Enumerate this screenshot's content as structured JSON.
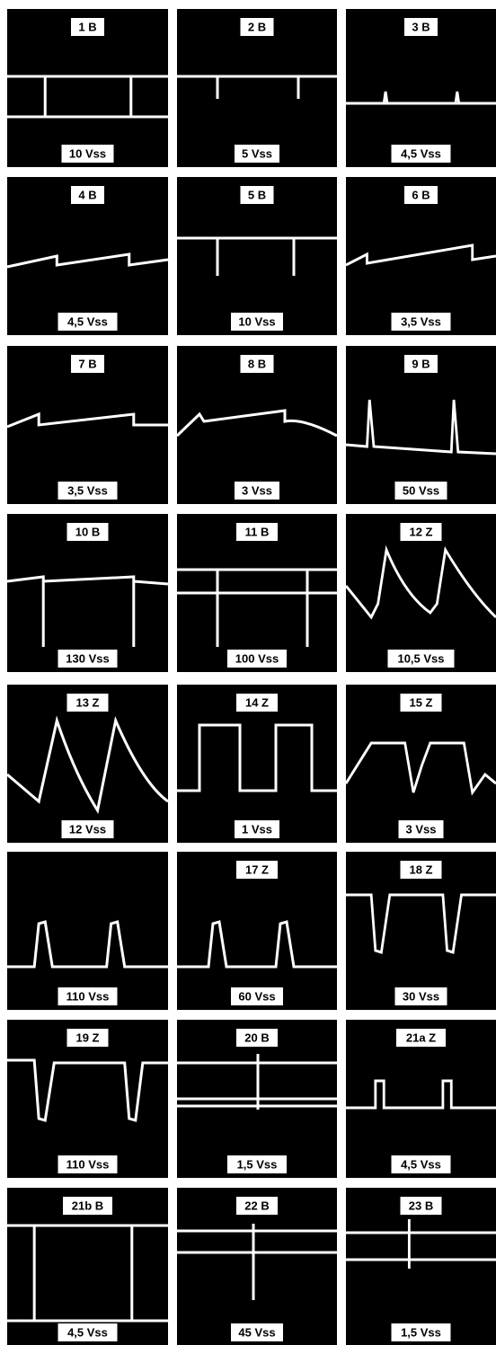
{
  "panels": [
    {
      "label": "1 B",
      "voltage": "10 Vss"
    },
    {
      "label": "2 B",
      "voltage": "5 Vss"
    },
    {
      "label": "3 B",
      "voltage": "4,5 Vss"
    },
    {
      "label": "4 B",
      "voltage": "4,5 Vss"
    },
    {
      "label": "5 B",
      "voltage": "10 Vss"
    },
    {
      "label": "6 B",
      "voltage": "3,5 Vss"
    },
    {
      "label": "7 B",
      "voltage": "3,5 Vss"
    },
    {
      "label": "8 B",
      "voltage": "3 Vss"
    },
    {
      "label": "9 B",
      "voltage": "50 Vss"
    },
    {
      "label": "10 B",
      "voltage": "130 Vss"
    },
    {
      "label": "11 B",
      "voltage": "100 Vss"
    },
    {
      "label": "12 Z",
      "voltage": "10,5 Vss"
    },
    {
      "label": "13 Z",
      "voltage": "12 Vss"
    },
    {
      "label": "14 Z",
      "voltage": "1 Vss"
    },
    {
      "label": "15 Z",
      "voltage": "3 Vss"
    },
    {
      "voltage": "110 Vss"
    },
    {
      "label": "17 Z",
      "voltage": "60 Vss"
    },
    {
      "label": "18 Z",
      "voltage": "30 Vss"
    },
    {
      "label": "19 Z",
      "voltage": "110 Vss"
    },
    {
      "label": "20 B",
      "voltage": "1,5 Vss"
    },
    {
      "label": "21a Z",
      "voltage": "4,5 Vss"
    },
    {
      "label": "21b B",
      "voltage": "4,5 Vss"
    },
    {
      "label": "22 B",
      "voltage": "45 Vss"
    },
    {
      "label": "23 B",
      "voltage": "1,5 Vss"
    }
  ]
}
